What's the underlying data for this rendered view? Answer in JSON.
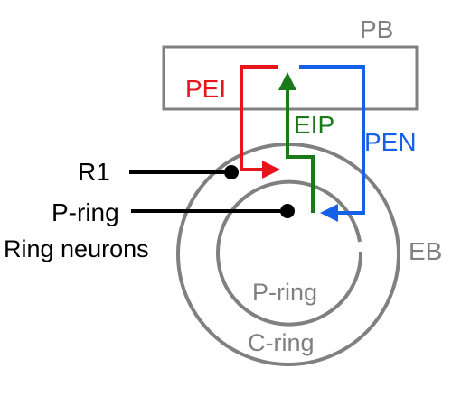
{
  "labels": {
    "pb": "PB",
    "eb": "EB",
    "pei": "PEI",
    "eip": "EIP",
    "pen": "PEN",
    "r1": "R1",
    "p_ring_left": "P-ring",
    "ring_neurons": "Ring neurons",
    "p_ring_inner": "P-ring",
    "c_ring": "C-ring"
  },
  "colors": {
    "structure": "#808080",
    "pei": "#e8141b",
    "eip": "#1a7a1a",
    "pen": "#1560e8",
    "neuron": "#000000"
  }
}
